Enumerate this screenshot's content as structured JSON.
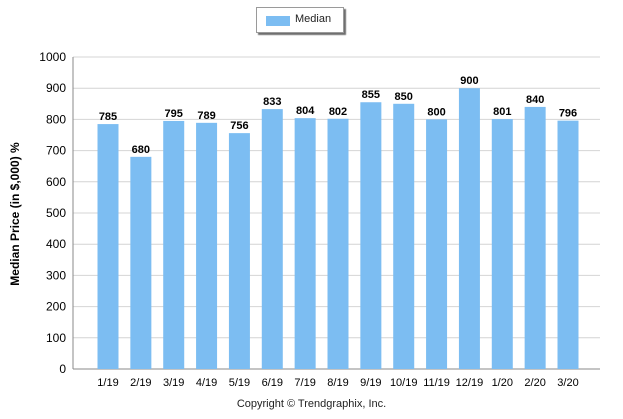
{
  "chart_data": {
    "type": "bar",
    "categories": [
      "1/19",
      "2/19",
      "3/19",
      "4/19",
      "5/19",
      "6/19",
      "7/19",
      "8/19",
      "9/19",
      "10/19",
      "11/19",
      "12/19",
      "1/20",
      "2/20",
      "3/20"
    ],
    "series": [
      {
        "name": "Median",
        "values": [
          785,
          680,
          795,
          789,
          756,
          833,
          804,
          802,
          855,
          850,
          800,
          900,
          801,
          840,
          796
        ]
      }
    ],
    "data_labels": [
      "785",
      "680",
      "795",
      "789",
      "756",
      "833",
      "804",
      "802",
      "855",
      "850",
      "800",
      "900",
      "801",
      "840",
      "796"
    ],
    "ylabel": "Median Price (in $,000) %",
    "ylim": [
      0,
      1000
    ],
    "yticks": [
      0,
      100,
      200,
      300,
      400,
      500,
      600,
      700,
      800,
      900,
      1000
    ],
    "grid": true,
    "legend_position": "top-center",
    "bar_color": "#7cbdf2",
    "grid_color": "#d4d4d4"
  },
  "footer": {
    "copyright": "Copyright © Trendgraphix, Inc."
  }
}
